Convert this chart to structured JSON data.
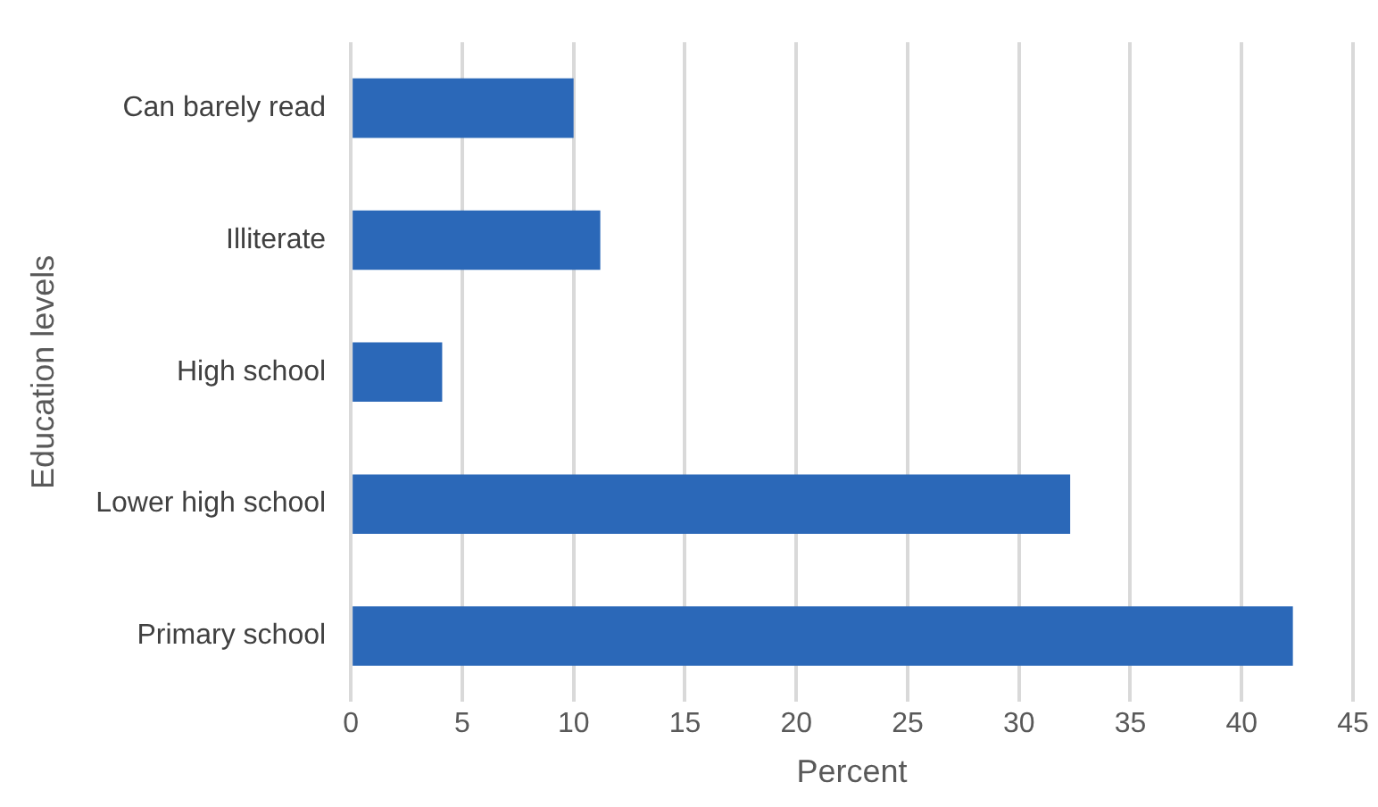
{
  "chart_data": {
    "type": "bar",
    "orientation": "horizontal",
    "xlabel": "Percent",
    "ylabel": "Education levels",
    "categories": [
      "Can barely read",
      "Illiterate",
      "High school",
      "Lower high school",
      "Primary school"
    ],
    "values": [
      10.0,
      11.2,
      4.1,
      32.3,
      42.3
    ],
    "color": "#2b68b8",
    "xlim": [
      0,
      45
    ],
    "xticks": [
      0,
      5,
      10,
      15,
      20,
      25,
      30,
      35,
      40,
      45
    ],
    "grid": "x",
    "legend": false
  }
}
